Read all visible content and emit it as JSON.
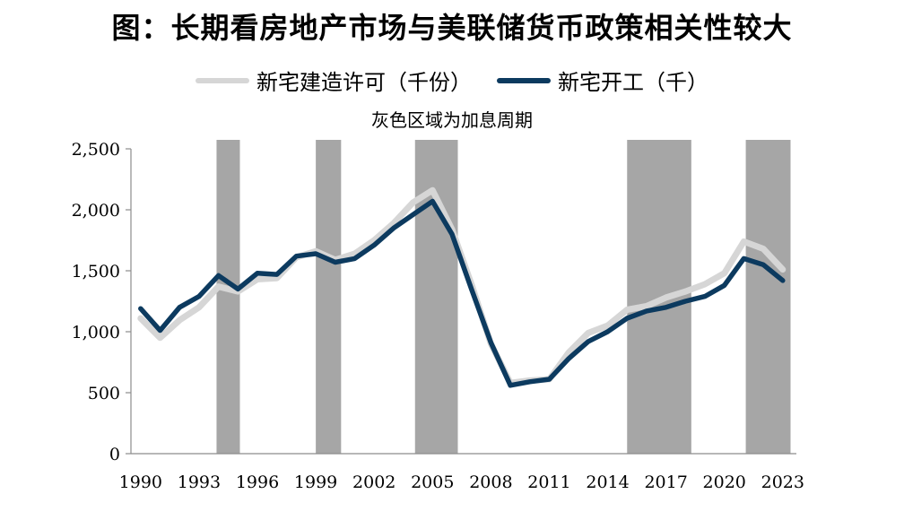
{
  "title": "图：长期看房地产市场与美联储货币政策相关性较大",
  "chart_data": {
    "type": "line",
    "annotation": "灰色区域为加息周期",
    "legend": {
      "placement": "top-center"
    },
    "x": [
      1990,
      1991,
      1992,
      1993,
      1994,
      1995,
      1996,
      1997,
      1998,
      1999,
      2000,
      2001,
      2002,
      2003,
      2004,
      2005,
      2006,
      2007,
      2008,
      2009,
      2010,
      2011,
      2012,
      2013,
      2014,
      2015,
      2016,
      2017,
      2018,
      2019,
      2020,
      2021,
      2022,
      2023
    ],
    "xticks": [
      "1990",
      "1993",
      "1996",
      "1999",
      "2002",
      "2005",
      "2008",
      "2011",
      "2014",
      "2017",
      "2020",
      "2023"
    ],
    "xlim": [
      1989.5,
      2023.7
    ],
    "yticks": [
      "0",
      "500",
      "1,000",
      "1,500",
      "2,000",
      "2,500"
    ],
    "ylim": [
      0,
      2500
    ],
    "grid": false,
    "shaded_periods": [
      [
        1993.9,
        1995.1
      ],
      [
        1999.0,
        2000.3
      ],
      [
        2004.1,
        2006.3
      ],
      [
        2015.0,
        2018.3
      ],
      [
        2021.1,
        2023.4
      ]
    ],
    "series": [
      {
        "name": "新宅建造许可（千份）",
        "color": "#d6d6d6",
        "values": [
          1110,
          950,
          1095,
          1200,
          1370,
          1330,
          1430,
          1440,
          1610,
          1660,
          1590,
          1640,
          1750,
          1890,
          2060,
          2160,
          1840,
          1390,
          900,
          580,
          600,
          610,
          830,
          990,
          1050,
          1180,
          1210,
          1280,
          1330,
          1390,
          1480,
          1740,
          1680,
          1510
        ]
      },
      {
        "name": "新宅开工（千）",
        "color": "#0c3a5f",
        "values": [
          1190,
          1010,
          1200,
          1290,
          1460,
          1350,
          1480,
          1470,
          1620,
          1640,
          1570,
          1600,
          1710,
          1850,
          1960,
          2070,
          1800,
          1350,
          910,
          560,
          590,
          610,
          780,
          920,
          1000,
          1110,
          1170,
          1200,
          1250,
          1290,
          1380,
          1600,
          1550,
          1420
        ]
      }
    ]
  }
}
